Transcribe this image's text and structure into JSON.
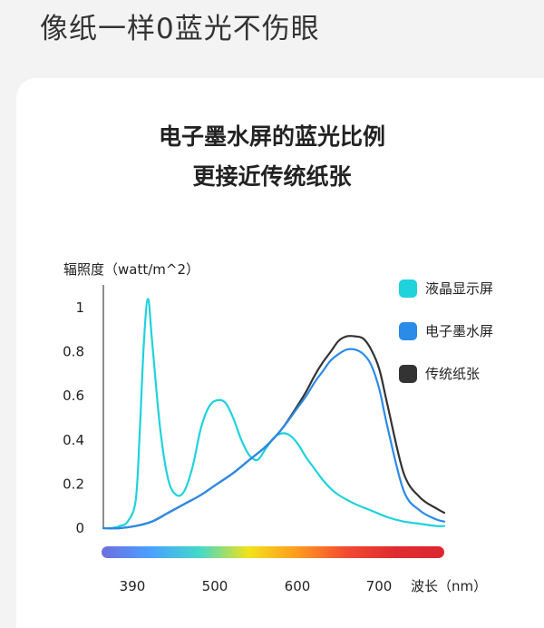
{
  "page": {
    "headline": "像纸一样0蓝光不伤眼"
  },
  "chart_data": {
    "type": "line",
    "title_lines": [
      "电子墨水屏的蓝光比例",
      "更接近传统纸张"
    ],
    "ylabel": "辐照度（watt/m^2）",
    "xlabel": "波长（nm）",
    "x_ticks": [
      390,
      500,
      600,
      700
    ],
    "y_ticks": [
      0,
      0.2,
      0.4,
      0.6,
      0.8,
      1
    ],
    "xlim": [
      350,
      770
    ],
    "ylim": [
      0,
      1.05
    ],
    "grid": false,
    "legend_position": "top-right",
    "series": [
      {
        "name": "液晶显示屏",
        "color": "#1fd2dc",
        "x": [
          350,
          360,
          370,
          380,
          390,
          395,
          400,
          405,
          410,
          420,
          430,
          440,
          450,
          460,
          470,
          480,
          490,
          500,
          510,
          520,
          530,
          540,
          550,
          560,
          570,
          580,
          590,
          600,
          610,
          620,
          630,
          640,
          660,
          680,
          700,
          720,
          740,
          760,
          770
        ],
        "values": [
          0.0,
          0.0,
          0.01,
          0.03,
          0.13,
          0.45,
          0.85,
          1.04,
          0.85,
          0.45,
          0.22,
          0.15,
          0.17,
          0.28,
          0.45,
          0.55,
          0.58,
          0.57,
          0.5,
          0.4,
          0.33,
          0.31,
          0.36,
          0.41,
          0.43,
          0.42,
          0.38,
          0.32,
          0.27,
          0.22,
          0.18,
          0.15,
          0.11,
          0.08,
          0.05,
          0.03,
          0.02,
          0.01,
          0.01
        ]
      },
      {
        "name": "电子墨水屏",
        "color": "#2b8be8",
        "x": [
          350,
          370,
          390,
          410,
          430,
          450,
          470,
          490,
          510,
          530,
          550,
          570,
          590,
          600,
          610,
          620,
          630,
          640,
          650,
          660,
          670,
          680,
          690,
          700,
          720,
          740,
          760,
          770
        ],
        "values": [
          0.0,
          0.0,
          0.01,
          0.03,
          0.07,
          0.11,
          0.15,
          0.2,
          0.25,
          0.31,
          0.37,
          0.45,
          0.55,
          0.6,
          0.66,
          0.71,
          0.76,
          0.79,
          0.81,
          0.81,
          0.79,
          0.74,
          0.63,
          0.46,
          0.17,
          0.08,
          0.04,
          0.03
        ]
      },
      {
        "name": "传统纸张",
        "color": "#333333",
        "x": [
          350,
          370,
          390,
          410,
          430,
          450,
          470,
          490,
          510,
          530,
          550,
          570,
          590,
          600,
          610,
          620,
          630,
          640,
          650,
          660,
          670,
          680,
          690,
          700,
          720,
          740,
          760,
          770
        ],
        "values": [
          0.0,
          0.0,
          0.01,
          0.03,
          0.07,
          0.11,
          0.15,
          0.2,
          0.25,
          0.31,
          0.37,
          0.45,
          0.56,
          0.62,
          0.69,
          0.75,
          0.8,
          0.85,
          0.87,
          0.87,
          0.86,
          0.81,
          0.72,
          0.56,
          0.25,
          0.14,
          0.09,
          0.07
        ]
      }
    ],
    "spectrum_bar_colors": [
      "#6e6ee0",
      "#4aa0ff",
      "#43d9c9",
      "#f2e21a",
      "#ff9a1f",
      "#f24a32",
      "#e02c30",
      "#dd2630"
    ]
  }
}
